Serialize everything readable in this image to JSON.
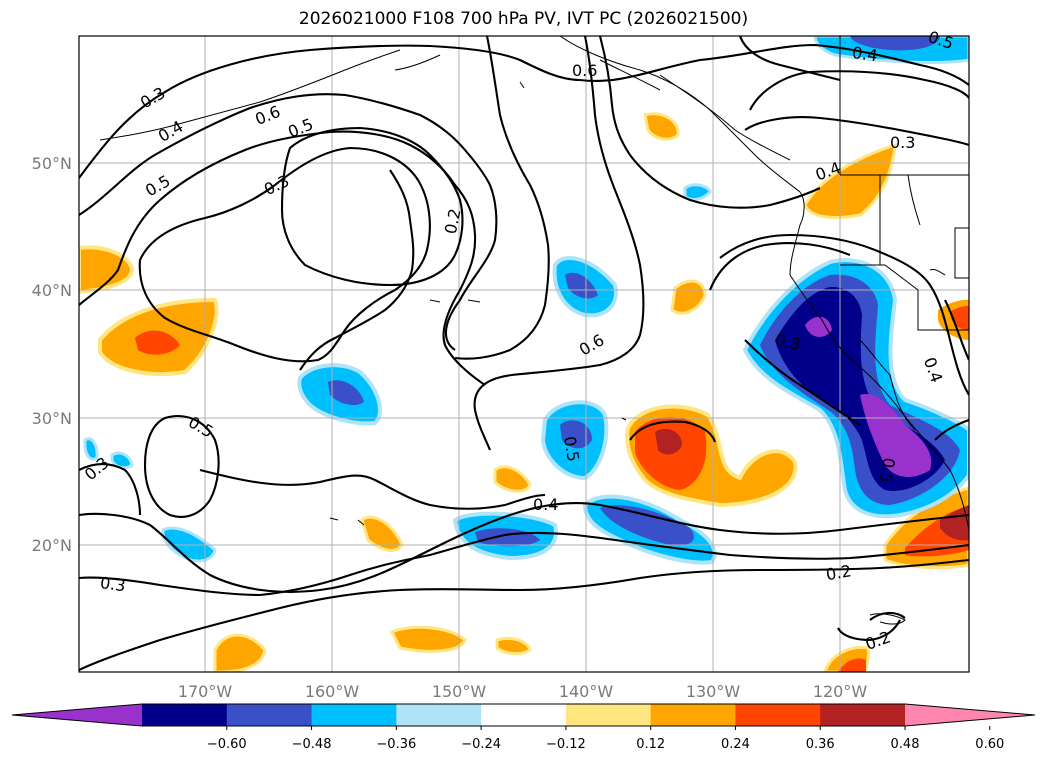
{
  "title": "2026021000 F108 700 hPa PV, IVT PC (2026021500)",
  "lat_labels": [
    "50°N",
    "40°N",
    "30°N",
    "20°N"
  ],
  "lon_labels": [
    "170°W",
    "160°W",
    "150°W",
    "140°W",
    "130°W",
    "120°W"
  ],
  "contour_labels": [
    "0.3",
    "0.4",
    "0.6",
    "0.5",
    "0.5",
    "0.3",
    "0.2",
    "0.6",
    "0.4",
    "0.5",
    "0.3",
    "0.4",
    "0.3",
    "0.4",
    "0.6",
    "0.5",
    "0.5",
    "0.4",
    "0.2",
    "0.3",
    "0.2",
    "0.3",
    "0.5"
  ],
  "colorbar": {
    "tick_labels": [
      "−0.60",
      "−0.48",
      "−0.36",
      "−0.24",
      "−0.12",
      "0.12",
      "0.24",
      "0.36",
      "0.48",
      "0.60"
    ],
    "colors": [
      "#9932cc",
      "#00008b",
      "#3a50c8",
      "#00bfff",
      "#aee3f8",
      "#ffffff",
      "#ffe680",
      "#ffa500",
      "#ff4500",
      "#b22222",
      "#ff86b0"
    ]
  }
}
